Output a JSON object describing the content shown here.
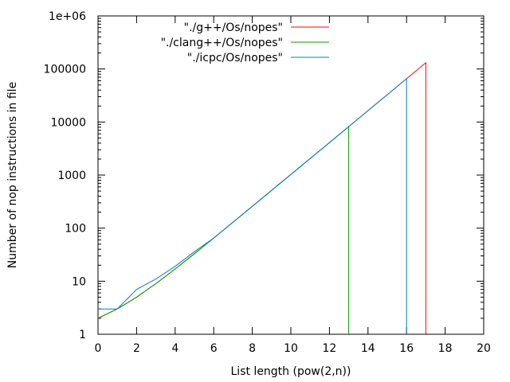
{
  "chart_data": {
    "type": "line",
    "title": "",
    "xlabel": "List length (pow(2,n))",
    "ylabel": "Number of nop instructions in file",
    "xlim": [
      0,
      20
    ],
    "ylim": [
      1,
      1000000
    ],
    "y_scale": "log",
    "x_ticks": [
      0,
      2,
      4,
      6,
      8,
      10,
      12,
      14,
      16,
      18,
      20
    ],
    "x_tick_labels": [
      "0",
      "2",
      "4",
      "6",
      "8",
      "10",
      "12",
      "14",
      "16",
      "18",
      "20"
    ],
    "y_ticks": [
      1,
      10,
      100,
      1000,
      10000,
      100000,
      1000000
    ],
    "y_tick_labels": [
      "1",
      "10",
      "100",
      "1000",
      "10000",
      "100000",
      "1e+06"
    ],
    "grid": false,
    "legend_position": "top-right",
    "series": [
      {
        "name": "\"./g++/Os/nopes\"",
        "color": "#ff0000",
        "x": [
          0,
          1,
          2,
          3,
          4,
          5,
          6,
          7,
          8,
          9,
          10,
          11,
          12,
          13,
          14,
          15,
          16,
          17,
          17
        ],
        "y": [
          2,
          3,
          5,
          9,
          17,
          33,
          65,
          129,
          257,
          513,
          1025,
          2049,
          4097,
          8193,
          16385,
          32769,
          65537,
          131073,
          1
        ]
      },
      {
        "name": "\"./clang++/Os/nopes\"",
        "color": "#00a000",
        "x": [
          0,
          1,
          2,
          3,
          4,
          5,
          6,
          7,
          8,
          9,
          10,
          11,
          12,
          13,
          13
        ],
        "y": [
          2,
          3,
          5,
          9,
          17,
          33,
          65,
          129,
          257,
          513,
          1025,
          2049,
          4097,
          8193,
          1
        ]
      },
      {
        "name": "\"./icpc/Os/nopes\"",
        "color": "#0080c0",
        "x": [
          0,
          1,
          2,
          3,
          4,
          5,
          6,
          7,
          8,
          9,
          10,
          11,
          12,
          13,
          14,
          15,
          16,
          16
        ],
        "y": [
          3,
          3,
          7,
          11,
          19,
          36,
          65,
          129,
          257,
          513,
          1025,
          2049,
          4097,
          8193,
          16385,
          32769,
          65537,
          1
        ]
      }
    ]
  }
}
